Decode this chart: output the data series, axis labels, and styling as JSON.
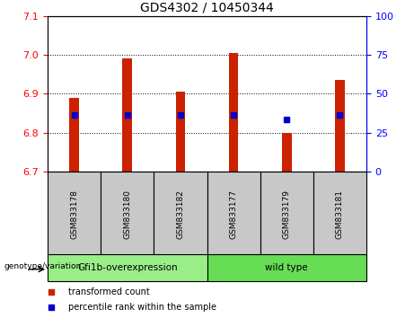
{
  "title": "GDS4302 / 10450344",
  "samples": [
    "GSM833178",
    "GSM833180",
    "GSM833182",
    "GSM833177",
    "GSM833179",
    "GSM833181"
  ],
  "bar_values": [
    6.89,
    6.99,
    6.905,
    7.005,
    6.8,
    6.935
  ],
  "bar_bottom": 6.7,
  "blue_dot_values": [
    6.845,
    6.845,
    6.845,
    6.845,
    6.835,
    6.845
  ],
  "bar_color": "#cc2200",
  "dot_color": "#0000cc",
  "ylim_left": [
    6.7,
    7.1
  ],
  "ylim_right": [
    0,
    100
  ],
  "yticks_left": [
    6.7,
    6.8,
    6.9,
    7.0,
    7.1
  ],
  "yticks_right": [
    0,
    25,
    50,
    75,
    100
  ],
  "groups": [
    {
      "label": "Gfi1b-overexpression",
      "start": 0,
      "end": 2,
      "color": "#99ee88"
    },
    {
      "label": "wild type",
      "start": 3,
      "end": 5,
      "color": "#66dd55"
    }
  ],
  "group_label": "genotype/variation",
  "legend_items": [
    {
      "label": "transformed count",
      "color": "#cc2200"
    },
    {
      "label": "percentile rank within the sample",
      "color": "#0000cc"
    }
  ],
  "bar_width": 0.18,
  "label_bg_color": "#c8c8c8",
  "fig_width": 4.61,
  "fig_height": 3.54,
  "fig_dpi": 100
}
